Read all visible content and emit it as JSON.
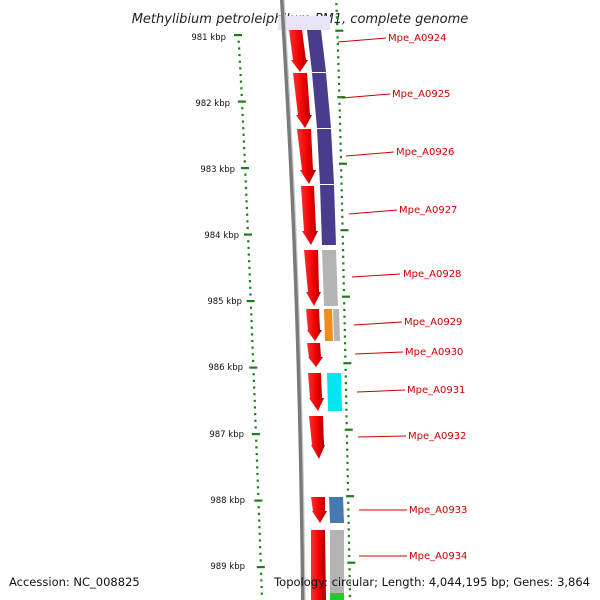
{
  "title": "Methylibium petroleiphilum PM1, complete genome",
  "footer": {
    "accession": "Accession: NC_008825",
    "summary": "Topology: circular; Length: 4,044,195 bp; Genes: 3,864"
  },
  "kbp_labels": [
    "981 kbp",
    "982 kbp",
    "983 kbp",
    "984 kbp",
    "985 kbp",
    "986 kbp",
    "987 kbp",
    "988 kbp",
    "989 kbp"
  ],
  "genes": [
    {
      "name": "Mpe_A0924",
      "cog_color": "#4a3c8c"
    },
    {
      "name": "Mpe_A0925",
      "cog_color": "#4a3c8c"
    },
    {
      "name": "Mpe_A0926",
      "cog_color": "#4a3c8c"
    },
    {
      "name": "Mpe_A0927",
      "cog_color": "#4a3c8c"
    },
    {
      "name": "Mpe_A0928",
      "cog_color": "#b4b4b4"
    },
    {
      "name": "Mpe_A0929",
      "cog_color": "#f08c1e"
    },
    {
      "name": "Mpe_A0930",
      "cog_color": ""
    },
    {
      "name": "Mpe_A0931",
      "cog_color": "#00e6f0"
    },
    {
      "name": "Mpe_A0932",
      "cog_color": ""
    },
    {
      "name": "Mpe_A0933",
      "cog_color": "#4678b4"
    },
    {
      "name": "Mpe_A0934",
      "cog_color": "#b4b4b4"
    }
  ],
  "colors": {
    "cds": "#ee0000",
    "backbone": "#7a7a7a",
    "tick": "#1a7f1a",
    "label": "#d00000"
  }
}
